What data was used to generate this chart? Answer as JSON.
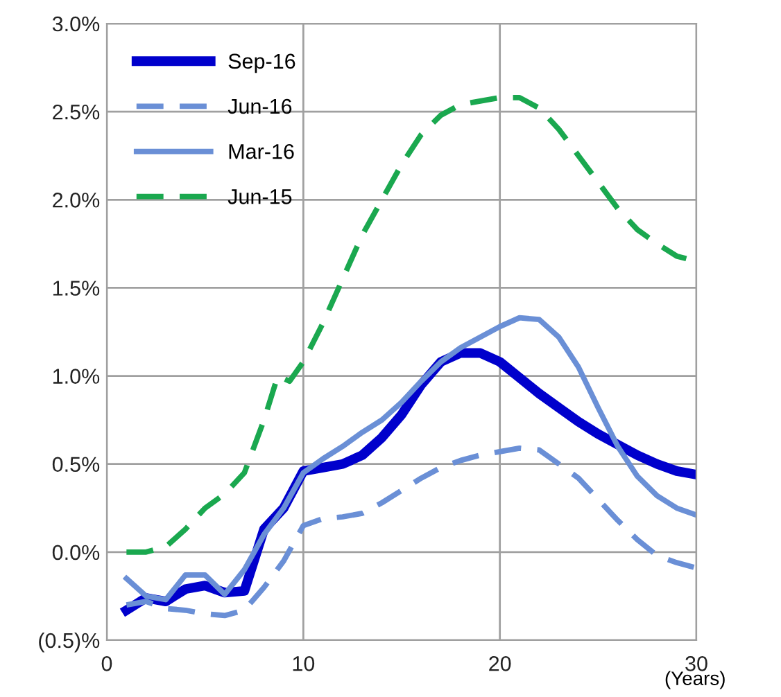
{
  "chart_data": {
    "type": "line",
    "xlabel": "(Years)",
    "x": [
      1,
      2,
      3,
      4,
      5,
      6,
      7,
      8,
      9,
      10,
      11,
      12,
      13,
      14,
      15,
      16,
      17,
      18,
      19,
      20,
      21,
      22,
      23,
      24,
      25,
      26,
      27,
      28,
      29,
      30
    ],
    "series": [
      {
        "name": "Sep-16",
        "color": "#0000cc",
        "line_style": "solid",
        "values": [
          -0.33,
          -0.26,
          -0.28,
          -0.21,
          -0.19,
          -0.23,
          -0.22,
          0.13,
          0.25,
          0.46,
          0.48,
          0.5,
          0.55,
          0.65,
          0.78,
          0.95,
          1.08,
          1.13,
          1.13,
          1.08,
          0.99,
          0.9,
          0.82,
          0.74,
          0.67,
          0.61,
          0.55,
          0.5,
          0.46,
          0.44
        ]
      },
      {
        "name": "Jun-16",
        "color": "#6a8fd6",
        "line_style": "dashed",
        "values": [
          -0.3,
          -0.28,
          -0.32,
          -0.33,
          -0.35,
          -0.36,
          -0.33,
          -0.2,
          -0.05,
          0.15,
          0.19,
          0.2,
          0.22,
          0.28,
          0.35,
          0.42,
          0.48,
          0.52,
          0.55,
          0.57,
          0.59,
          0.58,
          0.5,
          0.42,
          0.3,
          0.18,
          0.07,
          -0.02,
          -0.06,
          -0.09
        ]
      },
      {
        "name": "Mar-16",
        "color": "#6a8fd6",
        "line_style": "solid",
        "values": [
          -0.15,
          -0.25,
          -0.27,
          -0.13,
          -0.13,
          -0.24,
          -0.1,
          0.1,
          0.25,
          0.45,
          0.53,
          0.6,
          0.68,
          0.75,
          0.85,
          0.97,
          1.08,
          1.16,
          1.22,
          1.28,
          1.33,
          1.32,
          1.22,
          1.05,
          0.82,
          0.6,
          0.43,
          0.32,
          0.25,
          0.21
        ]
      },
      {
        "name": "Jun-15",
        "color": "#1aa84f",
        "line_style": "dashed",
        "x": [
          1,
          2,
          3,
          4,
          5,
          6,
          7,
          8,
          8.7,
          9.3,
          10,
          11,
          12,
          13,
          14,
          15,
          16,
          17,
          18,
          19,
          20,
          21,
          22,
          23,
          24,
          25,
          26,
          27,
          28,
          29,
          30
        ],
        "values": [
          0.0,
          0.0,
          0.03,
          0.13,
          0.25,
          0.33,
          0.45,
          0.75,
          1.0,
          0.97,
          1.08,
          1.3,
          1.55,
          1.8,
          2.0,
          2.2,
          2.37,
          2.48,
          2.54,
          2.56,
          2.58,
          2.58,
          2.52,
          2.4,
          2.25,
          2.1,
          1.95,
          1.83,
          1.75,
          1.68,
          1.65
        ]
      }
    ],
    "xlim": [
      0,
      30
    ],
    "xticks": [
      0,
      10,
      20,
      30
    ],
    "ylim": [
      -0.5,
      3.0
    ],
    "yticks": [
      {
        "value": -0.5,
        "label": "(0.5)%"
      },
      {
        "value": 0.0,
        "label": "0.0%"
      },
      {
        "value": 0.5,
        "label": "0.5%"
      },
      {
        "value": 1.0,
        "label": "1.0%"
      },
      {
        "value": 1.5,
        "label": "1.5%"
      },
      {
        "value": 2.0,
        "label": "2.0%"
      },
      {
        "value": 2.5,
        "label": "2.5%"
      },
      {
        "value": 3.0,
        "label": "3.0%"
      }
    ],
    "grid": true,
    "legend": "top left"
  }
}
